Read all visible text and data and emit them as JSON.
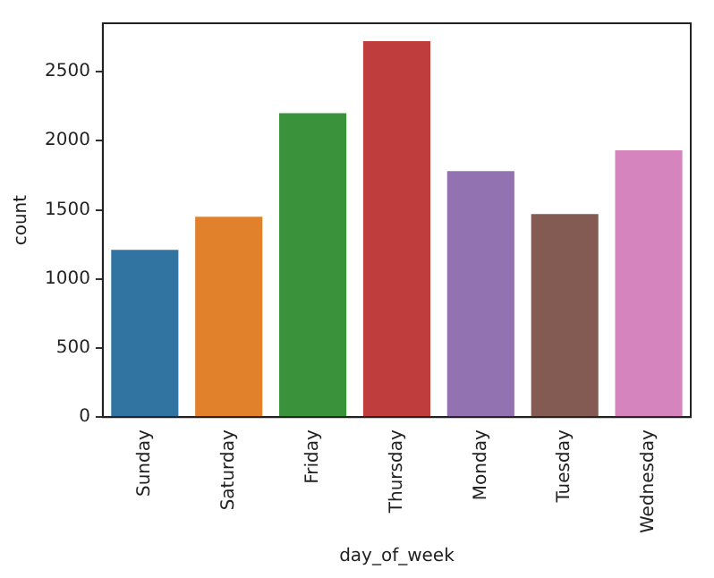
{
  "chart_data": {
    "type": "bar",
    "xlabel": "day_of_week",
    "ylabel": "count",
    "categories": [
      "Sunday",
      "Saturday",
      "Friday",
      "Thursday",
      "Monday",
      "Tuesday",
      "Wednesday"
    ],
    "values": [
      1210,
      1450,
      2200,
      2720,
      1780,
      1470,
      1930
    ],
    "colors": [
      "#3274a1",
      "#e1812c",
      "#3a923a",
      "#c03d3e",
      "#9372b2",
      "#845b53",
      "#d684bd"
    ],
    "ylim": [
      0,
      2850
    ],
    "yticks": [
      0,
      500,
      1000,
      1500,
      2000,
      2500
    ],
    "grid": false,
    "legend": false
  }
}
